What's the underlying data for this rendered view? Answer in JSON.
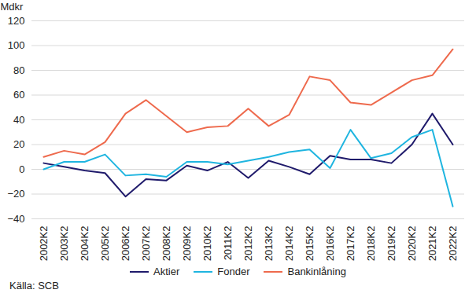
{
  "chart_data": {
    "type": "line",
    "y_label": "Mdkr",
    "source": "Källa: SCB",
    "categories": [
      "2002K2",
      "2003K2",
      "2004K2",
      "2005K2",
      "2006K2",
      "2007K2",
      "2008K2",
      "2009K2",
      "2010K2",
      "2011K2",
      "2012K2",
      "2013K2",
      "2014K2",
      "2015K2",
      "2016K2",
      "2017K2",
      "2018K2",
      "2019K2",
      "2020K2",
      "2021K2",
      "2022K2"
    ],
    "series": [
      {
        "name": "Aktier",
        "color": "#1f1a6b",
        "values": [
          5,
          2,
          -1,
          -3,
          -22,
          -8,
          -9,
          3,
          -1,
          6,
          -7,
          7,
          2,
          -4,
          11,
          8,
          8,
          5,
          20,
          45,
          20
        ]
      },
      {
        "name": "Fonder",
        "color": "#1fb5e0",
        "values": [
          0,
          6,
          6,
          12,
          -5,
          -4,
          -6,
          6,
          6,
          4,
          7,
          10,
          14,
          16,
          1,
          32,
          9,
          13,
          26,
          32,
          -30
        ]
      },
      {
        "name": "Bankinlåning",
        "color": "#ee6a4d",
        "values": [
          10,
          15,
          12,
          22,
          45,
          56,
          43,
          30,
          34,
          35,
          49,
          35,
          44,
          75,
          72,
          54,
          52,
          62,
          72,
          76,
          97
        ]
      }
    ],
    "ylim": [
      -40,
      120
    ],
    "yticks": [
      -40,
      -20,
      0,
      20,
      40,
      60,
      80,
      100,
      120
    ],
    "grid": true,
    "legend": "bottom"
  }
}
